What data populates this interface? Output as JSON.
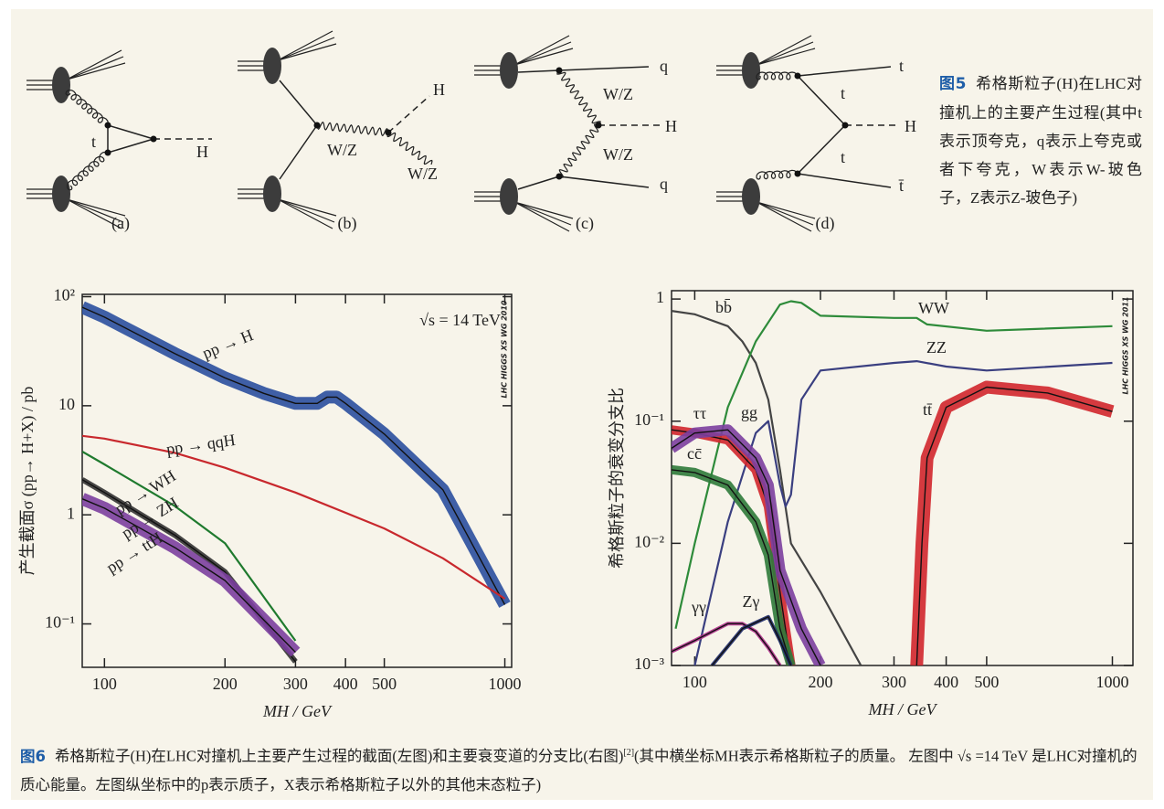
{
  "figure5": {
    "label": "图5",
    "caption": "希格斯粒子(H)在LHC对撞机上的主要产生过程(其中t表示顶夸克，q表示上夸克或者下夸克，W表示W-玻色子，Z表示Z-玻色子)",
    "diagrams": [
      {
        "tag": "(a)",
        "labels": [
          "t",
          "H"
        ]
      },
      {
        "tag": "(b)",
        "labels": [
          "H",
          "W/Z",
          "W/Z"
        ]
      },
      {
        "tag": "(c)",
        "labels": [
          "q",
          "W/Z",
          "H",
          "W/Z",
          "q"
        ]
      },
      {
        "tag": "(d)",
        "labels": [
          "t",
          "t",
          "H",
          "t",
          "t̄"
        ]
      }
    ]
  },
  "chart_data": [
    {
      "type": "line",
      "xscale": "log",
      "yscale": "log",
      "xlabel": "MH / GeV",
      "ylabel": "产生截面σ (pp→ H+X) / pb",
      "annotation": "√s = 14 TeV",
      "watermark": "LHC HIGGS XS WG 2010",
      "xlim": [
        88,
        1040
      ],
      "ylim": [
        0.04,
        105
      ],
      "xticks": [
        100,
        200,
        300,
        400,
        500,
        1000
      ],
      "yticks": [
        {
          "value": 100,
          "label": "10²"
        },
        10,
        1,
        {
          "value": 0.1,
          "label": "10⁻¹"
        }
      ],
      "series": [
        {
          "name": "pp → H",
          "color": "#2a4f9e",
          "x": [
            88,
            100,
            150,
            200,
            250,
            300,
            340,
            360,
            380,
            400,
            500,
            700,
            1000
          ],
          "values": [
            80,
            65,
            30,
            18,
            13,
            10.5,
            10.5,
            12,
            12,
            10.5,
            5.5,
            1.7,
            0.15
          ]
        },
        {
          "name": "pp → qqH",
          "color": "#c8282d",
          "x": [
            88,
            100,
            150,
            200,
            300,
            500,
            700,
            1000
          ],
          "values": [
            5.3,
            5,
            3.7,
            2.7,
            1.6,
            0.75,
            0.4,
            0.17
          ]
        },
        {
          "name": "pp → WH",
          "color": "#1f7a2e",
          "x": [
            88,
            100,
            150,
            200,
            300
          ],
          "values": [
            3.8,
            2.9,
            1.2,
            0.55,
            0.07
          ]
        },
        {
          "name": "pp → ZH",
          "color": "#333333",
          "x": [
            88,
            100,
            150,
            200,
            300
          ],
          "values": [
            2.1,
            1.6,
            0.65,
            0.3,
            0.045
          ]
        },
        {
          "name": "pp → ttH",
          "color": "#7b3f9e",
          "x": [
            88,
            100,
            150,
            200,
            300
          ],
          "values": [
            1.4,
            1.15,
            0.5,
            0.25,
            0.055
          ]
        }
      ]
    },
    {
      "type": "line",
      "xscale": "log",
      "yscale": "log",
      "xlabel": "MH / GeV",
      "ylabel": "希格斯粒子的衰变分支比",
      "watermark": "LHC HIGGS XS WG 2011",
      "xlim": [
        88,
        1120
      ],
      "ylim": [
        0.001,
        1.17
      ],
      "xticks": [
        100,
        200,
        300,
        400,
        500,
        1000
      ],
      "yticks": [
        1,
        {
          "value": 0.1,
          "label": "10⁻¹"
        },
        {
          "value": 0.01,
          "label": "10⁻²"
        },
        {
          "value": 0.001,
          "label": "10⁻³"
        }
      ],
      "series": [
        {
          "name": "bb̄",
          "color": "#444444",
          "x": [
            88,
            100,
            120,
            130,
            140,
            150,
            160,
            170,
            200,
            250
          ],
          "values": [
            0.8,
            0.75,
            0.6,
            0.45,
            0.3,
            0.15,
            0.04,
            0.01,
            0.004,
            0.001
          ]
        },
        {
          "name": "WW",
          "color": "#2e8b3a",
          "x": [
            90,
            100,
            120,
            140,
            160,
            170,
            180,
            200,
            300,
            340,
            360,
            500,
            1000
          ],
          "values": [
            0.002,
            0.01,
            0.13,
            0.45,
            0.9,
            0.96,
            0.93,
            0.73,
            0.7,
            0.7,
            0.62,
            0.55,
            0.6
          ]
        },
        {
          "name": "ZZ",
          "color": "#3a3f80",
          "x": [
            100,
            120,
            140,
            150,
            160,
            165,
            170,
            180,
            200,
            300,
            340,
            400,
            500,
            1000
          ],
          "values": [
            0.001,
            0.015,
            0.08,
            0.1,
            0.03,
            0.02,
            0.025,
            0.15,
            0.26,
            0.3,
            0.31,
            0.28,
            0.26,
            0.3
          ]
        },
        {
          "name": "tt̄",
          "color": "#d0262c",
          "x": [
            340,
            350,
            360,
            400,
            500,
            700,
            1000
          ],
          "values": [
            0.001,
            0.01,
            0.05,
            0.13,
            0.19,
            0.17,
            0.12
          ]
        },
        {
          "name": "ττ",
          "color": "#d0262c",
          "x": [
            88,
            100,
            120,
            140,
            150,
            160,
            170
          ],
          "values": [
            0.085,
            0.08,
            0.07,
            0.04,
            0.02,
            0.004,
            0.001
          ]
        },
        {
          "name": "gg",
          "color": "#7b3f9e",
          "x": [
            88,
            100,
            120,
            140,
            150,
            160,
            180,
            200
          ],
          "values": [
            0.06,
            0.08,
            0.085,
            0.05,
            0.03,
            0.006,
            0.002,
            0.001
          ]
        },
        {
          "name": "cc̄",
          "color": "#2e7a3a",
          "x": [
            88,
            100,
            120,
            140,
            150,
            160,
            170
          ],
          "values": [
            0.04,
            0.038,
            0.03,
            0.015,
            0.008,
            0.002,
            0.001
          ]
        },
        {
          "name": "γγ",
          "color": "#b0308c",
          "x": [
            88,
            100,
            120,
            130,
            140,
            150,
            160
          ],
          "values": [
            0.0013,
            0.0016,
            0.0022,
            0.0022,
            0.0019,
            0.0014,
            0.001
          ]
        },
        {
          "name": "Zγ",
          "color": "#1d2a6a",
          "x": [
            110,
            130,
            150,
            160,
            170
          ],
          "values": [
            0.001,
            0.002,
            0.0025,
            0.0016,
            0.001
          ]
        }
      ]
    }
  ],
  "figure6": {
    "label": "图6",
    "caption_before": "希格斯粒子(H)在LHC对撞机上主要产生过程的截面(左图)和主要衰变道的分支比(右图)",
    "ref": "[2]",
    "caption_after": "(其中横坐标MH表示希格斯粒子的质量。 左图中 √s =14 TeV 是LHC对撞机的质心能量。左图纵坐标中的p表示质子，X表示希格斯粒子以外的其他末态粒子)"
  }
}
